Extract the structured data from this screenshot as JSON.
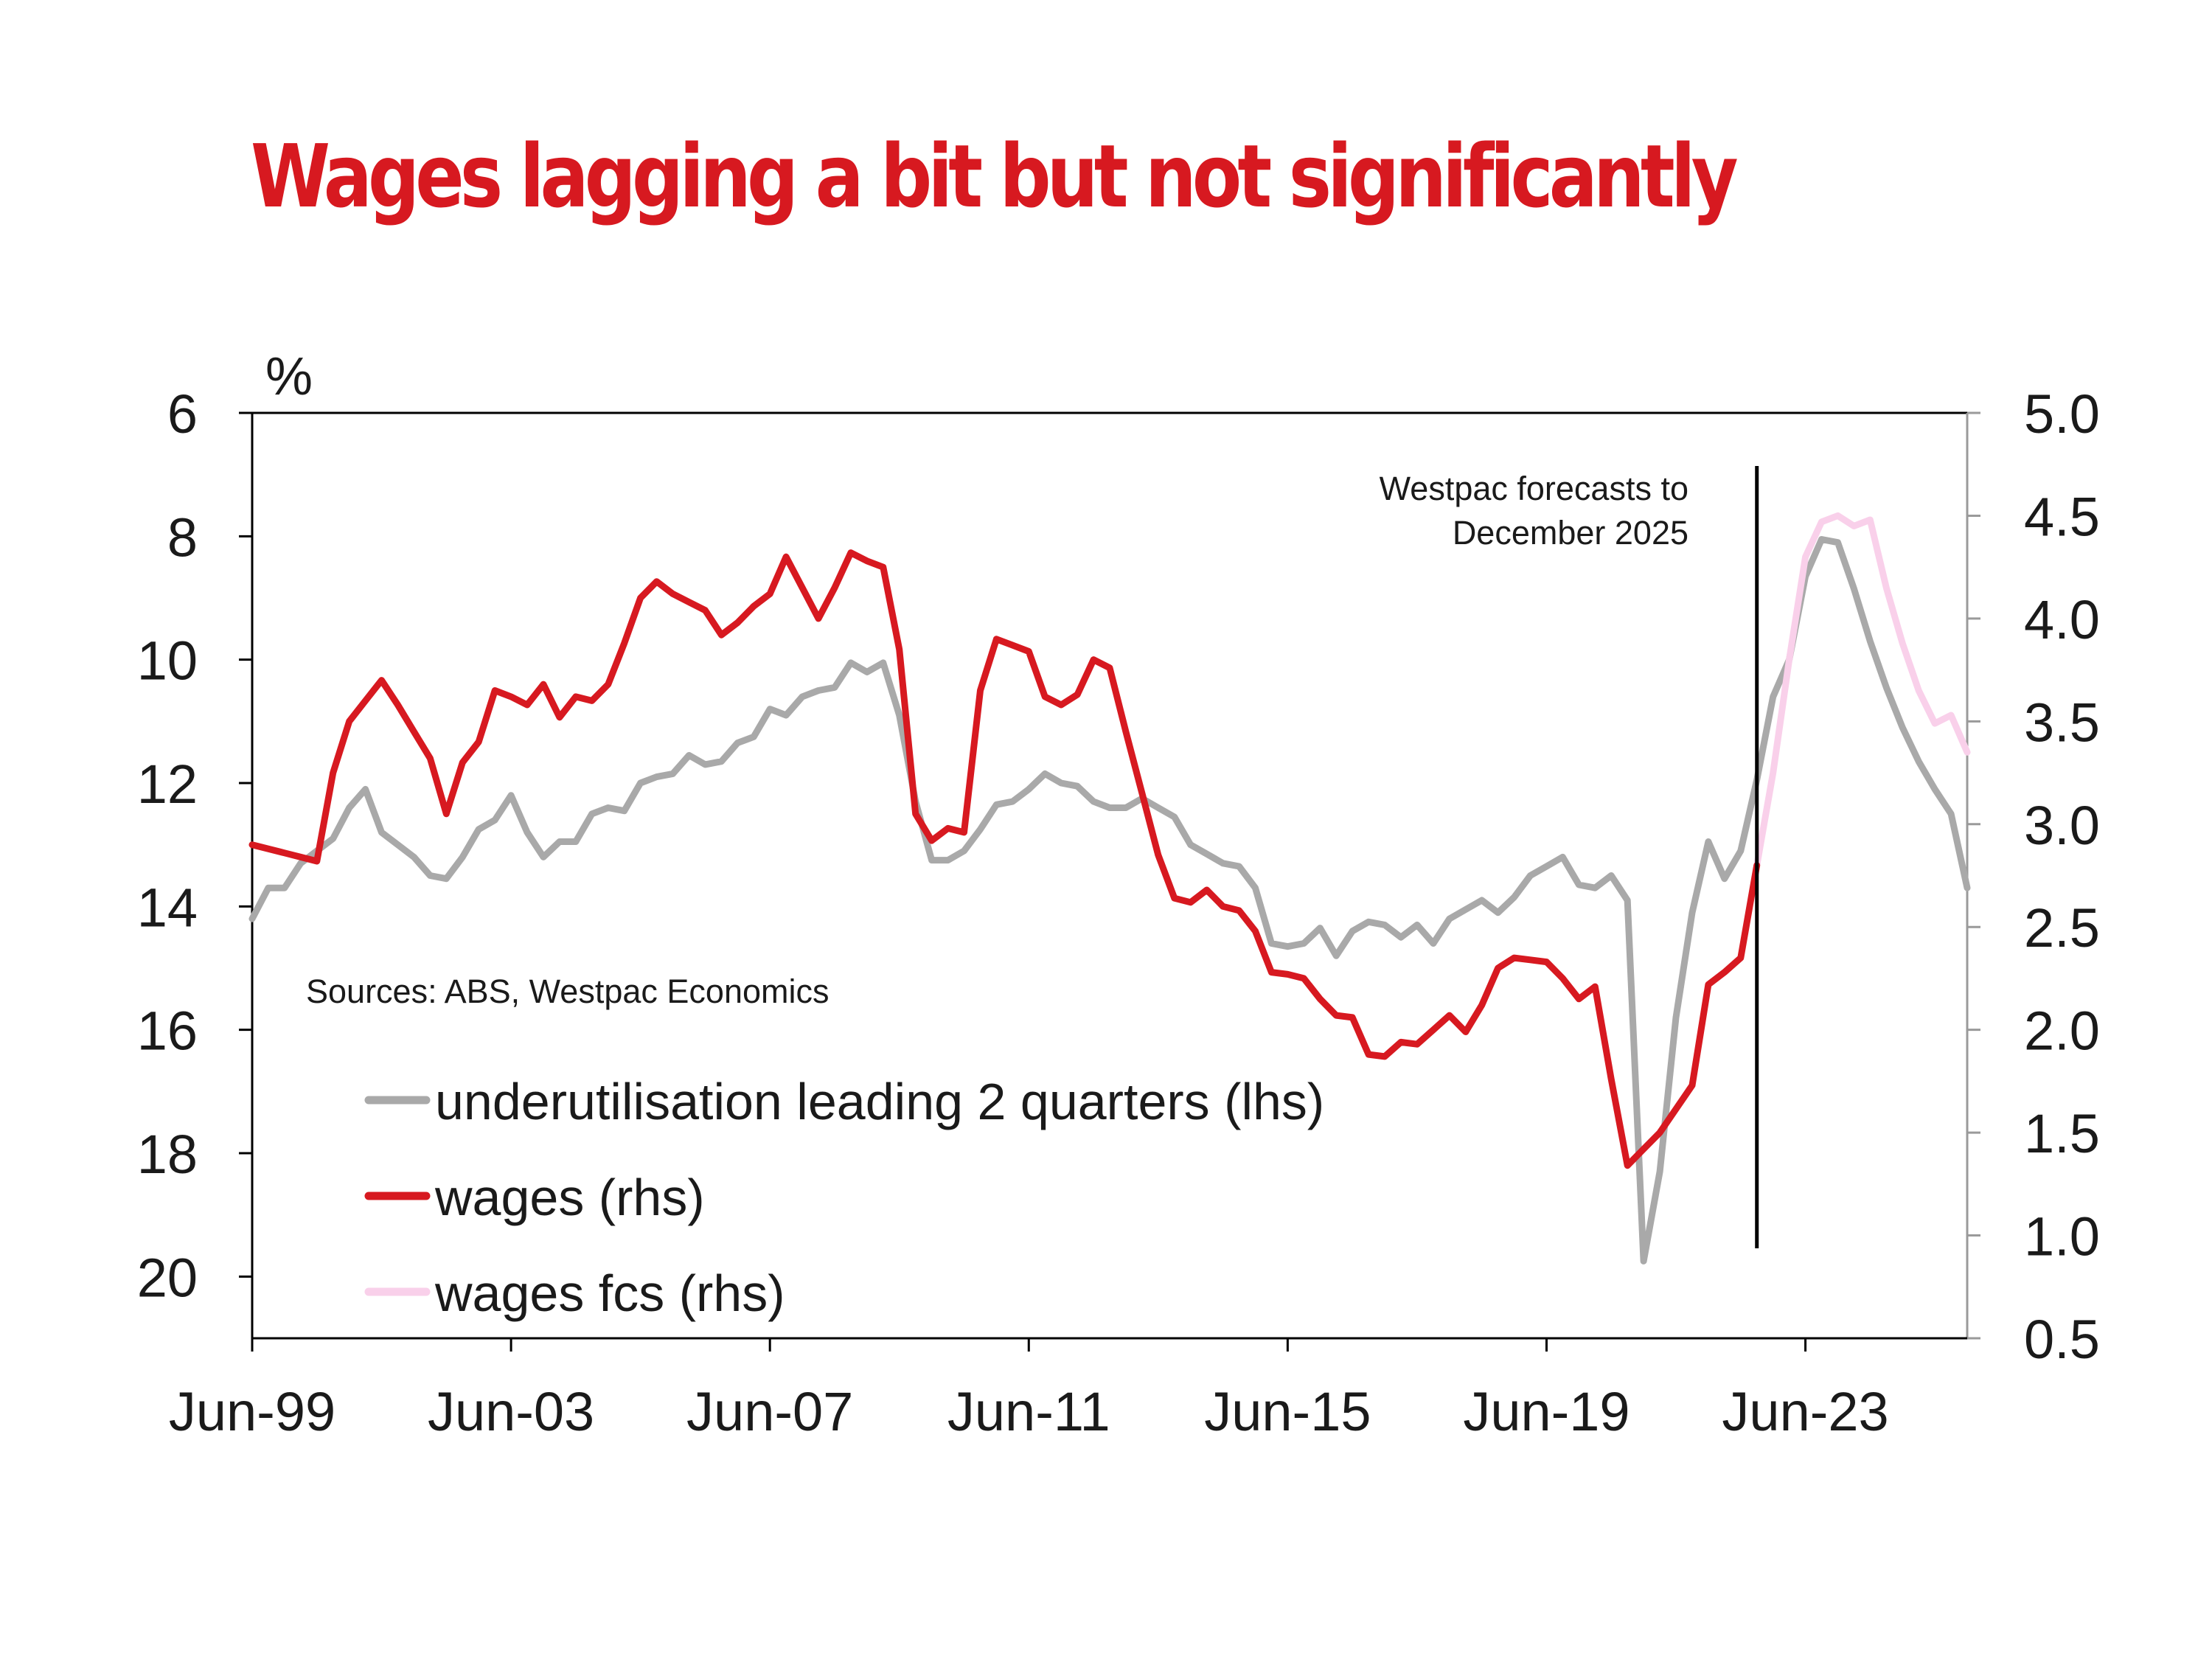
{
  "chart_data": {
    "type": "line",
    "title": "Wages lagging a bit but not significantly",
    "left_axis_unit": "%",
    "left_axis": {
      "min": 6,
      "max": 21,
      "inverted": true,
      "ticks": [
        6,
        8,
        10,
        12,
        14,
        16,
        18,
        20
      ]
    },
    "right_axis": {
      "min": 0.5,
      "max": 5.0,
      "ticks": [
        "5.0",
        "4.5",
        "4.0",
        "3.5",
        "3.0",
        "2.5",
        "2.0",
        "1.5",
        "1.0",
        "0.5"
      ]
    },
    "x_range": [
      1999.5,
      2026.0
    ],
    "x_ticks": [
      {
        "label": "Jun-99",
        "x": 1999.5
      },
      {
        "label": "Jun-03",
        "x": 2003.5
      },
      {
        "label": "Jun-07",
        "x": 2007.5
      },
      {
        "label": "Jun-11",
        "x": 2011.5
      },
      {
        "label": "Jun-15",
        "x": 2015.5
      },
      {
        "label": "Jun-19",
        "x": 2019.5
      },
      {
        "label": "Jun-23",
        "x": 2023.5
      }
    ],
    "forecast_start": 2022.75,
    "annotation": [
      "Westpac forecasts to",
      "December 2025"
    ],
    "source": "Sources: ABS, Westpac Economics",
    "colors": {
      "underutilisation": "#a9a9a9",
      "wages": "#d71920",
      "wages_fcs": "#f9d0ea",
      "title": "#d71920"
    },
    "series": [
      {
        "name": "underutilisation leading 2 quarters (lhs)",
        "axis": "left",
        "points": [
          [
            1999.5,
            14.2
          ],
          [
            1999.75,
            13.7
          ],
          [
            2000.0,
            13.7
          ],
          [
            2000.25,
            13.3
          ],
          [
            2000.5,
            13.1
          ],
          [
            2000.75,
            12.9
          ],
          [
            2001.0,
            12.4
          ],
          [
            2001.25,
            12.1
          ],
          [
            2001.5,
            12.8
          ],
          [
            2001.75,
            13.0
          ],
          [
            2002.0,
            13.2
          ],
          [
            2002.25,
            13.5
          ],
          [
            2002.5,
            13.55
          ],
          [
            2002.75,
            13.2
          ],
          [
            2003.0,
            12.75
          ],
          [
            2003.25,
            12.6
          ],
          [
            2003.5,
            12.2
          ],
          [
            2003.75,
            12.8
          ],
          [
            2004.0,
            13.2
          ],
          [
            2004.25,
            12.95
          ],
          [
            2004.5,
            12.95
          ],
          [
            2004.75,
            12.5
          ],
          [
            2005.0,
            12.4
          ],
          [
            2005.25,
            12.45
          ],
          [
            2005.5,
            12.0
          ],
          [
            2005.75,
            11.9
          ],
          [
            2006.0,
            11.85
          ],
          [
            2006.25,
            11.55
          ],
          [
            2006.5,
            11.7
          ],
          [
            2006.75,
            11.65
          ],
          [
            2007.0,
            11.35
          ],
          [
            2007.25,
            11.25
          ],
          [
            2007.5,
            10.8
          ],
          [
            2007.75,
            10.9
          ],
          [
            2008.0,
            10.6
          ],
          [
            2008.25,
            10.5
          ],
          [
            2008.5,
            10.45
          ],
          [
            2008.75,
            10.05
          ],
          [
            2009.0,
            10.2
          ],
          [
            2009.25,
            10.05
          ],
          [
            2009.5,
            10.9
          ],
          [
            2009.75,
            12.3
          ],
          [
            2010.0,
            13.25
          ],
          [
            2010.25,
            13.25
          ],
          [
            2010.5,
            13.1
          ],
          [
            2010.75,
            12.75
          ],
          [
            2011.0,
            12.35
          ],
          [
            2011.25,
            12.3
          ],
          [
            2011.5,
            12.1
          ],
          [
            2011.75,
            11.85
          ],
          [
            2012.0,
            12.0
          ],
          [
            2012.25,
            12.05
          ],
          [
            2012.5,
            12.3
          ],
          [
            2012.75,
            12.4
          ],
          [
            2013.0,
            12.4
          ],
          [
            2013.25,
            12.25
          ],
          [
            2013.5,
            12.4
          ],
          [
            2013.75,
            12.55
          ],
          [
            2014.0,
            13.0
          ],
          [
            2014.25,
            13.15
          ],
          [
            2014.5,
            13.3
          ],
          [
            2014.75,
            13.35
          ],
          [
            2015.0,
            13.7
          ],
          [
            2015.25,
            14.6
          ],
          [
            2015.5,
            14.65
          ],
          [
            2015.75,
            14.6
          ],
          [
            2016.0,
            14.35
          ],
          [
            2016.25,
            14.8
          ],
          [
            2016.5,
            14.4
          ],
          [
            2016.75,
            14.25
          ],
          [
            2017.0,
            14.3
          ],
          [
            2017.25,
            14.5
          ],
          [
            2017.5,
            14.3
          ],
          [
            2017.75,
            14.6
          ],
          [
            2018.0,
            14.2
          ],
          [
            2018.25,
            14.05
          ],
          [
            2018.5,
            13.9
          ],
          [
            2018.75,
            14.1
          ],
          [
            2019.0,
            13.85
          ],
          [
            2019.25,
            13.5
          ],
          [
            2019.5,
            13.35
          ],
          [
            2019.75,
            13.2
          ],
          [
            2020.0,
            13.65
          ],
          [
            2020.25,
            13.7
          ],
          [
            2020.5,
            13.5
          ],
          [
            2020.75,
            13.9
          ],
          [
            2021.0,
            19.75
          ],
          [
            2021.25,
            18.3
          ],
          [
            2021.5,
            15.8
          ],
          [
            2021.75,
            14.1
          ],
          [
            2022.0,
            12.95
          ],
          [
            2022.25,
            13.55
          ],
          [
            2022.5,
            13.1
          ],
          [
            2022.75,
            11.95
          ],
          [
            2023.0,
            10.6
          ],
          [
            2023.25,
            10.0
          ],
          [
            2023.5,
            8.65
          ],
          [
            2023.75,
            8.05
          ],
          [
            2024.0,
            8.1
          ],
          [
            2024.25,
            8.85
          ],
          [
            2024.5,
            9.7
          ],
          [
            2024.75,
            10.45
          ],
          [
            2025.0,
            11.1
          ],
          [
            2025.25,
            11.65
          ],
          [
            2025.5,
            12.1
          ],
          [
            2025.75,
            12.5
          ],
          [
            2026.0,
            13.7
          ]
        ]
      },
      {
        "name": "wages (rhs)",
        "axis": "right",
        "points": [
          [
            1999.5,
            2.9
          ],
          [
            1999.75,
            2.88
          ],
          [
            2000.0,
            2.86
          ],
          [
            2000.25,
            2.84
          ],
          [
            2000.5,
            2.82
          ],
          [
            2000.75,
            3.25
          ],
          [
            2001.0,
            3.5
          ],
          [
            2001.25,
            3.6
          ],
          [
            2001.5,
            3.7
          ],
          [
            2001.75,
            3.58
          ],
          [
            2002.0,
            3.45
          ],
          [
            2002.25,
            3.32
          ],
          [
            2002.5,
            3.05
          ],
          [
            2002.75,
            3.3
          ],
          [
            2003.0,
            3.4
          ],
          [
            2003.25,
            3.65
          ],
          [
            2003.5,
            3.62
          ],
          [
            2003.75,
            3.58
          ],
          [
            2004.0,
            3.68
          ],
          [
            2004.25,
            3.52
          ],
          [
            2004.5,
            3.62
          ],
          [
            2004.75,
            3.6
          ],
          [
            2005.0,
            3.68
          ],
          [
            2005.25,
            3.88
          ],
          [
            2005.5,
            4.1
          ],
          [
            2005.75,
            4.18
          ],
          [
            2006.0,
            4.12
          ],
          [
            2006.25,
            4.08
          ],
          [
            2006.5,
            4.04
          ],
          [
            2006.75,
            3.92
          ],
          [
            2007.0,
            3.98
          ],
          [
            2007.25,
            4.06
          ],
          [
            2007.5,
            4.12
          ],
          [
            2007.75,
            4.3
          ],
          [
            2008.0,
            4.15
          ],
          [
            2008.25,
            4.0
          ],
          [
            2008.5,
            4.15
          ],
          [
            2008.75,
            4.32
          ],
          [
            2009.0,
            4.28
          ],
          [
            2009.25,
            4.25
          ],
          [
            2009.5,
            3.85
          ],
          [
            2009.75,
            3.05
          ],
          [
            2010.0,
            2.92
          ],
          [
            2010.25,
            2.98
          ],
          [
            2010.5,
            2.96
          ],
          [
            2010.75,
            3.65
          ],
          [
            2011.0,
            3.9
          ],
          [
            2011.25,
            3.87
          ],
          [
            2011.5,
            3.84
          ],
          [
            2011.75,
            3.62
          ],
          [
            2012.0,
            3.58
          ],
          [
            2012.25,
            3.63
          ],
          [
            2012.5,
            3.8
          ],
          [
            2012.75,
            3.76
          ],
          [
            2013.0,
            3.45
          ],
          [
            2013.25,
            3.15
          ],
          [
            2013.5,
            2.85
          ],
          [
            2013.75,
            2.64
          ],
          [
            2014.0,
            2.62
          ],
          [
            2014.25,
            2.68
          ],
          [
            2014.5,
            2.6
          ],
          [
            2014.75,
            2.58
          ],
          [
            2015.0,
            2.48
          ],
          [
            2015.25,
            2.28
          ],
          [
            2015.5,
            2.27
          ],
          [
            2015.75,
            2.25
          ],
          [
            2016.0,
            2.15
          ],
          [
            2016.25,
            2.07
          ],
          [
            2016.5,
            2.06
          ],
          [
            2016.75,
            1.88
          ],
          [
            2017.0,
            1.87
          ],
          [
            2017.25,
            1.94
          ],
          [
            2017.5,
            1.93
          ],
          [
            2017.75,
            2.0
          ],
          [
            2018.0,
            2.07
          ],
          [
            2018.25,
            1.99
          ],
          [
            2018.5,
            2.12
          ],
          [
            2018.75,
            2.3
          ],
          [
            2019.0,
            2.35
          ],
          [
            2019.25,
            2.34
          ],
          [
            2019.5,
            2.33
          ],
          [
            2019.75,
            2.25
          ],
          [
            2020.0,
            2.15
          ],
          [
            2020.25,
            2.21
          ],
          [
            2020.5,
            1.76
          ],
          [
            2020.75,
            1.34
          ],
          [
            2021.0,
            1.42
          ],
          [
            2021.25,
            1.5
          ],
          [
            2021.75,
            1.73
          ],
          [
            2022.0,
            2.22
          ],
          [
            2022.25,
            2.28
          ],
          [
            2022.5,
            2.35
          ],
          [
            2022.75,
            2.8
          ]
        ]
      },
      {
        "name": "wages fcs (rhs)",
        "axis": "right",
        "points": [
          [
            2022.75,
            2.8
          ],
          [
            2023.0,
            3.25
          ],
          [
            2023.25,
            3.8
          ],
          [
            2023.5,
            4.3
          ],
          [
            2023.75,
            4.47
          ],
          [
            2024.0,
            4.5
          ],
          [
            2024.25,
            4.45
          ],
          [
            2024.5,
            4.48
          ],
          [
            2024.75,
            4.15
          ],
          [
            2025.0,
            3.88
          ],
          [
            2025.25,
            3.65
          ],
          [
            2025.5,
            3.49
          ],
          [
            2025.75,
            3.53
          ],
          [
            2026.0,
            3.35
          ]
        ]
      }
    ]
  }
}
